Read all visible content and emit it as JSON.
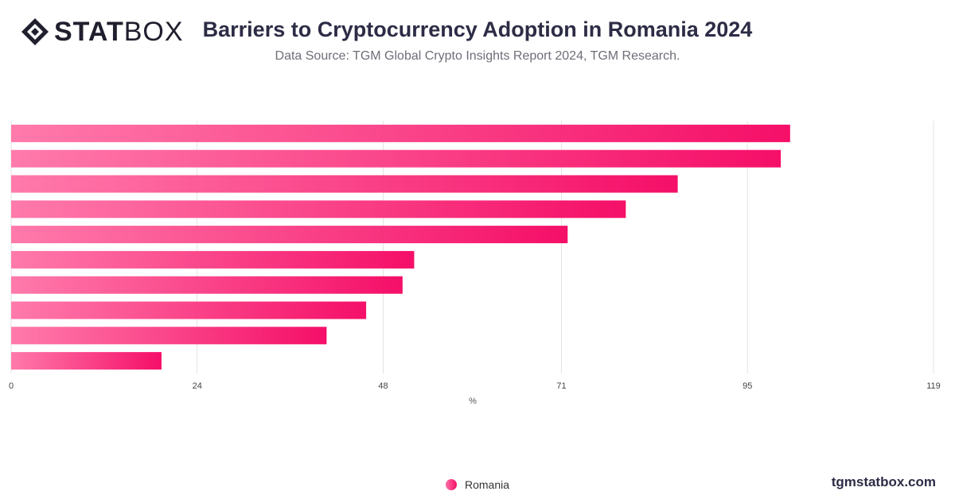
{
  "header": {
    "logo_bold": "STAT",
    "logo_light": "BOX",
    "title": "Barriers to Cryptocurrency Adoption in Romania 2024",
    "subtitle": "Data Source: TGM Global Crypto Insights Report 2024, TGM Research."
  },
  "footer": {
    "site": "tgmstatbox.com"
  },
  "colors": {
    "bar_start": "#ff7aab",
    "bar_end": "#f50f68",
    "grid": "#e3e3e3",
    "title": "#2c2c46"
  },
  "icons": {
    "logo": "diamond-logo-icon",
    "legend": "circle-marker-icon"
  },
  "chart_data": {
    "type": "bar",
    "orientation": "horizontal",
    "categories": [
      "",
      "",
      "",
      "",
      "",
      "",
      "",
      "",
      "",
      ""
    ],
    "series": [
      {
        "name": "Romania",
        "values": [
          100.5,
          99.3,
          86,
          79.3,
          71.8,
          52,
          50.5,
          45.8,
          40.7,
          19.4
        ]
      }
    ],
    "xlabel": "%",
    "ylabel": "",
    "xlim": [
      0,
      119
    ],
    "xticks": [
      0,
      24,
      48,
      71,
      95,
      119
    ],
    "grid": true,
    "legend": "bottom-center"
  }
}
